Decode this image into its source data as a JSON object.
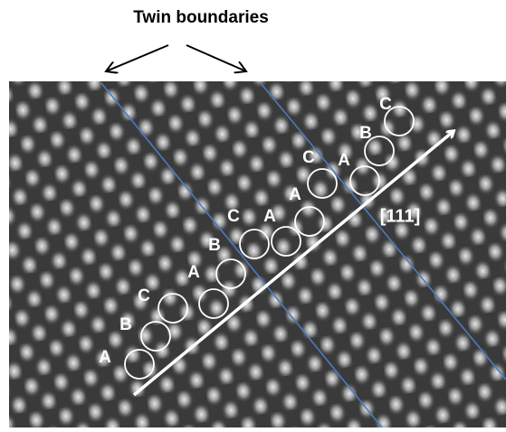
{
  "title": "Twin boundaries",
  "labels": [
    "A",
    "B",
    "C",
    "A",
    "B",
    "C",
    "A",
    "A",
    "C",
    "A",
    "B",
    "C"
  ],
  "direction": "[111]"
}
